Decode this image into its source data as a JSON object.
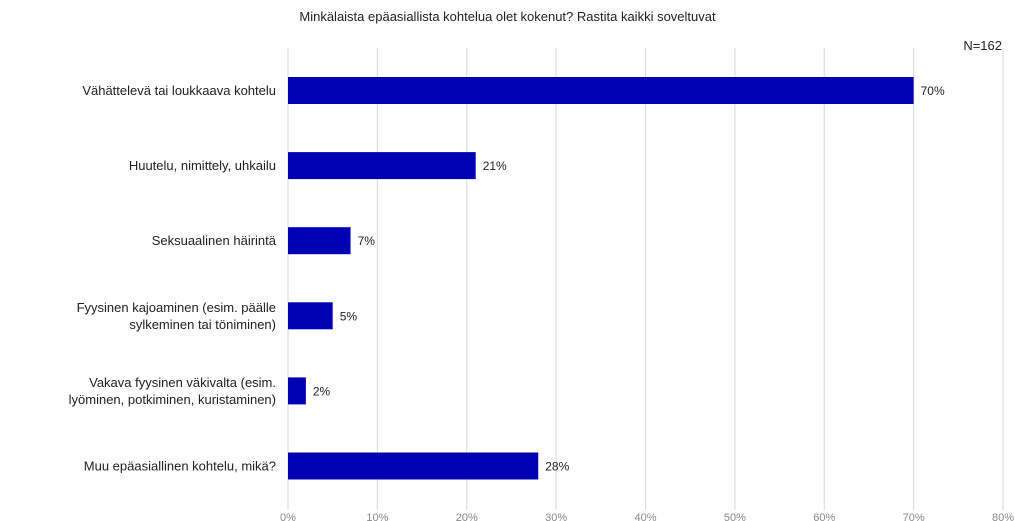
{
  "chart_data": {
    "type": "bar",
    "orientation": "horizontal",
    "title": "Minkälaista epäasiallista kohtelua olet kokenut? Rastita kaikki soveltuvat",
    "note": "N=162",
    "categories": [
      [
        "Vähättelevä tai loukkaava kohtelu"
      ],
      [
        "Huutelu, nimittely, uhkailu"
      ],
      [
        "Seksuaalinen häirintä"
      ],
      [
        "Fyysinen kajoaminen (esim. päälle",
        "sylkeminen tai töniminen)"
      ],
      [
        "Vakava fyysinen väkivalta (esim.",
        "lyöminen, potkiminen, kuristaminen)"
      ],
      [
        "Muu epäasiallinen kohtelu, mikä?"
      ]
    ],
    "values": [
      70,
      21,
      7,
      5,
      2,
      28
    ],
    "value_labels": [
      "70%",
      "21%",
      "7%",
      "5%",
      "2%",
      "28%"
    ],
    "x_ticks": [
      "0%",
      "10%",
      "20%",
      "30%",
      "40%",
      "50%",
      "60%",
      "70%",
      "80%"
    ],
    "xlim": [
      0,
      80
    ],
    "grid": true,
    "legend": "none",
    "colors": {
      "bar": "#0000b4",
      "grid": "#d9d9d9",
      "text": "#222222",
      "tick": "#888888"
    }
  }
}
